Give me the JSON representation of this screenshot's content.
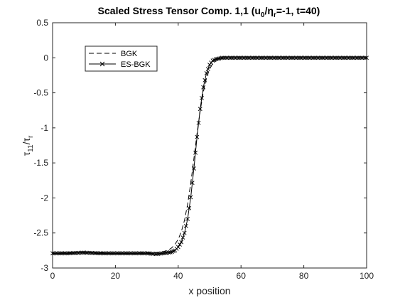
{
  "chart_data": {
    "type": "line",
    "title": "Scaled Stress Tensor Comp. 1,1 (u0/ηr=-1, t=40)",
    "title_parts": {
      "prefix": "Scaled Stress Tensor Comp. 1,1 (u",
      "sub1": "0",
      "mid": "/η",
      "sub2": "r",
      "suffix": "=-1, t=40)"
    },
    "xlabel": "x position",
    "ylabel": "τ11/τr",
    "ylabel_parts": {
      "tau1": "τ",
      "sub1": "11",
      "slash": "/",
      "tau2": "τ",
      "sub2": "r"
    },
    "xlim": [
      0,
      100
    ],
    "ylim": [
      -3,
      0.5
    ],
    "xticks": [
      0,
      20,
      40,
      60,
      80,
      100
    ],
    "xtick_labels": [
      "0",
      "20",
      "40",
      "60",
      "80",
      "100"
    ],
    "yticks": [
      0.5,
      0,
      -0.5,
      -1,
      -1.5,
      -2,
      -2.5,
      -3
    ],
    "ytick_labels": [
      "0.5",
      "0",
      "-0.5",
      "-1",
      "-1.5",
      "-2",
      "-2.5",
      "-3"
    ],
    "grid": false,
    "legend_position": "top-left",
    "series": [
      {
        "name": "BGK",
        "style": "dashed",
        "color": "#000000",
        "x": [
          0,
          5,
          10,
          15,
          20,
          25,
          30,
          33,
          35,
          37,
          38,
          39,
          40,
          41,
          42,
          43,
          44,
          45,
          46,
          47,
          48,
          49,
          50,
          51,
          52,
          53,
          54,
          55,
          57,
          60,
          70,
          80,
          90,
          100
        ],
        "y": [
          -2.79,
          -2.78,
          -2.79,
          -2.78,
          -2.79,
          -2.79,
          -2.78,
          -2.78,
          -2.77,
          -2.74,
          -2.71,
          -2.66,
          -2.59,
          -2.48,
          -2.32,
          -2.09,
          -1.79,
          -1.44,
          -1.08,
          -0.76,
          -0.49,
          -0.29,
          -0.16,
          -0.08,
          -0.04,
          -0.02,
          -0.01,
          0.0,
          0.0,
          0.0,
          0.0,
          0.0,
          0.0,
          0.0
        ]
      },
      {
        "name": "ES-BGK",
        "style": "solid-x",
        "color": "#000000",
        "x": [
          0,
          5,
          10,
          15,
          20,
          25,
          30,
          33,
          35,
          37,
          38,
          39,
          40,
          41,
          42,
          43,
          44,
          45,
          46,
          47,
          48,
          49,
          50,
          51,
          52,
          53,
          54,
          55,
          57,
          60,
          70,
          80,
          90,
          100
        ],
        "y": [
          -2.79,
          -2.79,
          -2.78,
          -2.79,
          -2.79,
          -2.79,
          -2.79,
          -2.8,
          -2.79,
          -2.78,
          -2.77,
          -2.75,
          -2.7,
          -2.63,
          -2.5,
          -2.3,
          -1.99,
          -1.58,
          -1.13,
          -0.73,
          -0.42,
          -0.22,
          -0.1,
          -0.04,
          -0.02,
          -0.01,
          0.0,
          0.0,
          0.0,
          0.0,
          0.0,
          0.0,
          0.0,
          0.0
        ]
      }
    ]
  }
}
